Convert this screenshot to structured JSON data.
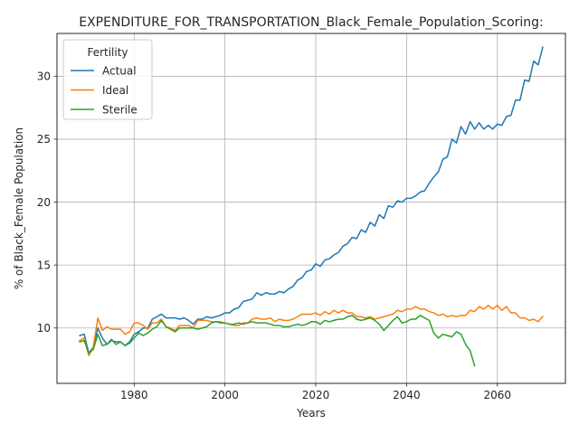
{
  "chart_data": {
    "type": "line",
    "title": "EXPENDITURE_FOR_TRANSPORTATION_Black_Female_Population_Scoring:",
    "xlabel": "Years",
    "ylabel": "% of Black_Female Population",
    "xlim": [
      1963,
      2075
    ],
    "ylim": [
      5.6,
      33.4
    ],
    "xticks": [
      1980,
      2000,
      2020,
      2040,
      2060
    ],
    "yticks": [
      10,
      15,
      20,
      25,
      30
    ],
    "grid": true,
    "legend": {
      "title": "Fertility",
      "placement": "top-left"
    },
    "series": [
      {
        "name": "Actual",
        "color": "#1f77b4",
        "x": [
          1968,
          1969,
          1970,
          1971,
          1972,
          1973,
          1974,
          1975,
          1976,
          1977,
          1978,
          1979,
          1980,
          1981,
          1982,
          1983,
          1984,
          1985,
          1986,
          1987,
          1988,
          1989,
          1990,
          1991,
          1992,
          1993,
          1994,
          1995,
          1996,
          1997,
          1998,
          1999,
          2000,
          2001,
          2002,
          2003,
          2004,
          2005,
          2006,
          2007,
          2008,
          2009,
          2010,
          2011,
          2012,
          2013,
          2014,
          2015,
          2016,
          2017,
          2018,
          2019,
          2020,
          2021,
          2022,
          2023,
          2024,
          2025,
          2026,
          2027,
          2028,
          2029,
          2030,
          2031,
          2032,
          2033,
          2034,
          2035,
          2036,
          2037,
          2038,
          2039,
          2040,
          2041,
          2042,
          2043,
          2044,
          2045,
          2046,
          2047,
          2048,
          2049,
          2050,
          2051,
          2052,
          2053,
          2054,
          2055,
          2056,
          2057,
          2058,
          2059,
          2060,
          2061,
          2062,
          2063,
          2064,
          2065,
          2066,
          2067,
          2068,
          2069,
          2070
        ],
        "values": [
          9.4,
          9.5,
          8.0,
          8.5,
          10.0,
          9.2,
          8.7,
          9.0,
          8.9,
          8.9,
          8.6,
          8.9,
          9.5,
          9.7,
          10.0,
          10.0,
          10.7,
          10.9,
          11.1,
          10.8,
          10.8,
          10.8,
          10.7,
          10.8,
          10.6,
          10.3,
          10.7,
          10.7,
          10.9,
          10.8,
          10.9,
          11.0,
          11.2,
          11.2,
          11.5,
          11.6,
          12.1,
          12.2,
          12.3,
          12.8,
          12.6,
          12.8,
          12.7,
          12.7,
          12.9,
          12.8,
          13.1,
          13.3,
          13.8,
          14.0,
          14.5,
          14.6,
          15.1,
          14.9,
          15.4,
          15.5,
          15.8,
          16.0,
          16.5,
          16.7,
          17.2,
          17.1,
          17.8,
          17.6,
          18.4,
          18.1,
          19.0,
          18.7,
          19.7,
          19.6,
          20.1,
          20.0,
          20.3,
          20.3,
          20.5,
          20.8,
          20.9,
          21.5,
          22.0,
          22.4,
          23.4,
          23.6,
          25.0,
          24.7,
          26.0,
          25.4,
          26.4,
          25.8,
          26.3,
          25.8,
          26.1,
          25.8,
          26.2,
          26.1,
          26.8,
          26.9,
          28.1,
          28.1,
          29.7,
          29.6,
          31.2,
          30.9,
          32.3
        ]
      },
      {
        "name": "Ideal",
        "color": "#ff7f0e",
        "x": [
          1968,
          1969,
          1970,
          1971,
          1972,
          1973,
          1974,
          1975,
          1976,
          1977,
          1978,
          1979,
          1980,
          1981,
          1982,
          1983,
          1984,
          1985,
          1986,
          1987,
          1988,
          1989,
          1990,
          1991,
          1992,
          1993,
          1994,
          1995,
          1996,
          1997,
          1998,
          1999,
          2000,
          2001,
          2002,
          2003,
          2004,
          2005,
          2006,
          2007,
          2008,
          2009,
          2010,
          2011,
          2012,
          2013,
          2014,
          2015,
          2016,
          2017,
          2018,
          2019,
          2020,
          2021,
          2022,
          2023,
          2024,
          2025,
          2026,
          2027,
          2028,
          2029,
          2030,
          2031,
          2032,
          2033,
          2034,
          2035,
          2036,
          2037,
          2038,
          2039,
          2040,
          2041,
          2042,
          2043,
          2044,
          2045,
          2046,
          2047,
          2048,
          2049,
          2050,
          2051,
          2052,
          2053,
          2054,
          2055,
          2056,
          2057,
          2058,
          2059,
          2060,
          2061,
          2062,
          2063,
          2064,
          2065,
          2066,
          2067,
          2068,
          2069,
          2070
        ],
        "values": [
          9.0,
          9.2,
          7.8,
          8.5,
          10.8,
          9.8,
          10.1,
          9.9,
          9.9,
          9.9,
          9.5,
          9.7,
          10.4,
          10.4,
          10.2,
          9.9,
          10.4,
          10.4,
          10.7,
          10.1,
          10.0,
          9.8,
          10.2,
          10.2,
          10.2,
          10.0,
          10.6,
          10.6,
          10.6,
          10.5,
          10.5,
          10.5,
          10.4,
          10.3,
          10.2,
          10.2,
          10.4,
          10.4,
          10.7,
          10.8,
          10.7,
          10.7,
          10.8,
          10.5,
          10.7,
          10.6,
          10.6,
          10.7,
          10.9,
          11.1,
          11.1,
          11.1,
          11.2,
          11.0,
          11.3,
          11.1,
          11.4,
          11.2,
          11.4,
          11.2,
          11.2,
          10.9,
          10.9,
          10.8,
          10.9,
          10.7,
          10.8,
          10.9,
          11.0,
          11.1,
          11.4,
          11.3,
          11.5,
          11.5,
          11.7,
          11.5,
          11.5,
          11.3,
          11.2,
          11.0,
          11.1,
          10.9,
          11.0,
          10.9,
          11.0,
          11.0,
          11.4,
          11.3,
          11.7,
          11.5,
          11.8,
          11.5,
          11.8,
          11.4,
          11.7,
          11.2,
          11.2,
          10.8,
          10.8,
          10.6,
          10.7,
          10.5,
          10.9
        ]
      },
      {
        "name": "Sterile",
        "color": "#2ca02c",
        "x": [
          1968,
          1969,
          1970,
          1971,
          1972,
          1973,
          1974,
          1975,
          1976,
          1977,
          1978,
          1979,
          1980,
          1981,
          1982,
          1983,
          1984,
          1985,
          1986,
          1987,
          1988,
          1989,
          1990,
          1991,
          1992,
          1993,
          1994,
          1995,
          1996,
          1997,
          1998,
          1999,
          2000,
          2001,
          2002,
          2003,
          2004,
          2005,
          2006,
          2007,
          2008,
          2009,
          2010,
          2011,
          2012,
          2013,
          2014,
          2015,
          2016,
          2017,
          2018,
          2019,
          2020,
          2021,
          2022,
          2023,
          2024,
          2025,
          2026,
          2027,
          2028,
          2029,
          2030,
          2031,
          2032,
          2033,
          2034,
          2035,
          2036,
          2037,
          2038,
          2039,
          2040,
          2041,
          2042,
          2043,
          2044,
          2045,
          2046,
          2047,
          2048,
          2049,
          2050,
          2051,
          2052,
          2053,
          2054,
          2055
        ],
        "values": [
          8.9,
          9.0,
          8.0,
          8.3,
          9.5,
          8.6,
          8.7,
          9.1,
          8.7,
          8.9,
          8.6,
          8.8,
          9.2,
          9.6,
          9.4,
          9.6,
          9.9,
          10.1,
          10.6,
          10.1,
          9.9,
          9.7,
          10.0,
          10.0,
          10.0,
          10.0,
          9.9,
          10.0,
          10.1,
          10.4,
          10.5,
          10.4,
          10.4,
          10.3,
          10.3,
          10.4,
          10.3,
          10.4,
          10.5,
          10.4,
          10.4,
          10.4,
          10.3,
          10.2,
          10.2,
          10.1,
          10.1,
          10.2,
          10.3,
          10.2,
          10.3,
          10.5,
          10.5,
          10.3,
          10.6,
          10.5,
          10.6,
          10.7,
          10.7,
          10.9,
          11.0,
          10.7,
          10.6,
          10.7,
          10.8,
          10.6,
          10.3,
          9.8,
          10.2,
          10.6,
          10.9,
          10.4,
          10.5,
          10.7,
          10.7,
          11.0,
          10.8,
          10.6,
          9.6,
          9.2,
          9.5,
          9.4,
          9.3,
          9.7,
          9.5,
          8.7,
          8.2,
          7.0
        ]
      }
    ]
  }
}
